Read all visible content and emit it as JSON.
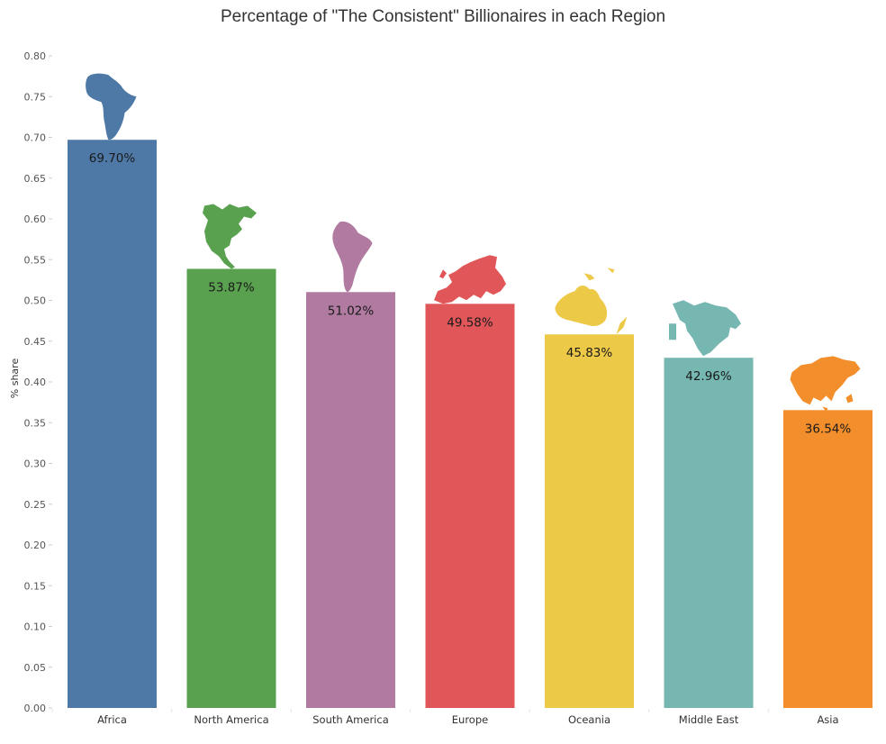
{
  "chart_data": {
    "type": "bar",
    "title": "Percentage of \"The Consistent\" Billionaires in each Region",
    "xlabel": "",
    "ylabel": "% share",
    "ylim": [
      0,
      0.8
    ],
    "yticks": [
      "0.00",
      "0.05",
      "0.10",
      "0.15",
      "0.20",
      "0.25",
      "0.30",
      "0.35",
      "0.40",
      "0.45",
      "0.50",
      "0.55",
      "0.60",
      "0.65",
      "0.70",
      "0.75",
      "0.80"
    ],
    "categories": [
      "Africa",
      "North America",
      "South America",
      "Europe",
      "Oceania",
      "Middle East",
      "Asia"
    ],
    "values": [
      0.697,
      0.5387,
      0.5102,
      0.4958,
      0.4583,
      0.4296,
      0.3654
    ],
    "data_labels": [
      "69.70%",
      "53.87%",
      "51.02%",
      "49.58%",
      "45.83%",
      "42.96%",
      "36.54%"
    ],
    "colors": [
      "#4e79a7",
      "#59a14f",
      "#b07aa1",
      "#e15759",
      "#edc948",
      "#76b7b2",
      "#f28e2b"
    ],
    "icons": [
      "africa-map-icon",
      "north-america-map-icon",
      "south-america-map-icon",
      "europe-map-icon",
      "oceania-map-icon",
      "middle-east-map-icon",
      "asia-map-icon"
    ],
    "grid": false,
    "legend": "none"
  }
}
